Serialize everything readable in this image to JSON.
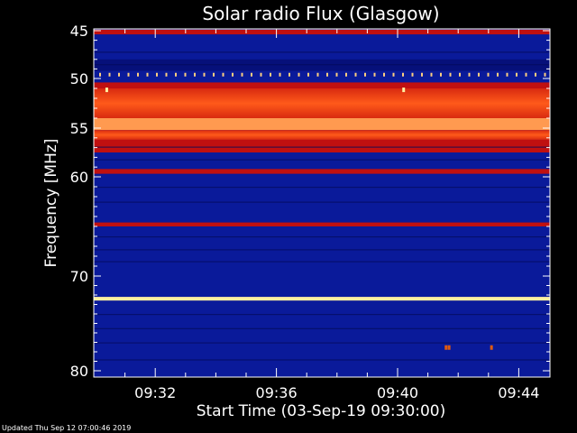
{
  "footer": {
    "updated": "Updated Thu Sep 12 07:00:46 2019"
  },
  "chart_data": {
    "type": "heatmap",
    "title": "Solar radio Flux (Glasgow)",
    "xlabel": "Start Time (03-Sep-19 09:30:00)",
    "ylabel": "Frequency [MHz]",
    "xlim_minutes": [
      0.0,
      15.0
    ],
    "ylim": [
      80,
      45
    ],
    "y_ticks": [
      45,
      50,
      55,
      60,
      70,
      80
    ],
    "y_tick_labels": [
      "45",
      "50",
      "55",
      "60",
      "70",
      "80"
    ],
    "x_ticks_minutes": [
      2,
      6,
      10,
      14
    ],
    "x_tick_labels": [
      "09:32",
      "09:36",
      "09:40",
      "09:44"
    ],
    "colors": {
      "background": "#000000",
      "axis": "#ffffff",
      "low": "#0a1a9a",
      "mid": "#c01010",
      "high": "#ff4a10",
      "peak": "#fff0a0"
    },
    "bands": [
      {
        "f_start": 44.9,
        "f_end": 45.4,
        "level": "mid"
      },
      {
        "f_start": 45.4,
        "f_end": 48.0,
        "level": "low"
      },
      {
        "f_start": 48.0,
        "f_end": 49.2,
        "level": "low-dark"
      },
      {
        "f_start": 49.2,
        "f_end": 50.4,
        "level": "low"
      },
      {
        "f_start": 50.4,
        "f_end": 51.0,
        "level": "mid"
      },
      {
        "f_start": 51.0,
        "f_end": 54.0,
        "level": "high"
      },
      {
        "f_start": 54.0,
        "f_end": 55.2,
        "level": "high-bright"
      },
      {
        "f_start": 55.2,
        "f_end": 56.2,
        "level": "high"
      },
      {
        "f_start": 56.2,
        "f_end": 57.5,
        "level": "mid"
      },
      {
        "f_start": 57.5,
        "f_end": 59.2,
        "level": "low"
      },
      {
        "f_start": 59.2,
        "f_end": 59.7,
        "level": "mid"
      },
      {
        "f_start": 59.7,
        "f_end": 64.6,
        "level": "low"
      },
      {
        "f_start": 64.6,
        "f_end": 65.0,
        "level": "mid"
      },
      {
        "f_start": 65.0,
        "f_end": 72.2,
        "level": "low"
      },
      {
        "f_start": 72.2,
        "f_end": 72.6,
        "level": "peak"
      },
      {
        "f_start": 72.6,
        "f_end": 80.0,
        "level": "low"
      }
    ],
    "markers": [
      {
        "t": 0.4,
        "f": 51.1,
        "level": "peak"
      },
      {
        "t": 10.2,
        "f": 51.1,
        "level": "peak"
      },
      {
        "t": 11.6,
        "f": 77.5,
        "level": "mid"
      },
      {
        "t": 11.7,
        "f": 77.5,
        "level": "mid"
      },
      {
        "t": 13.1,
        "f": 77.5,
        "level": "mid"
      }
    ],
    "grid": false
  }
}
